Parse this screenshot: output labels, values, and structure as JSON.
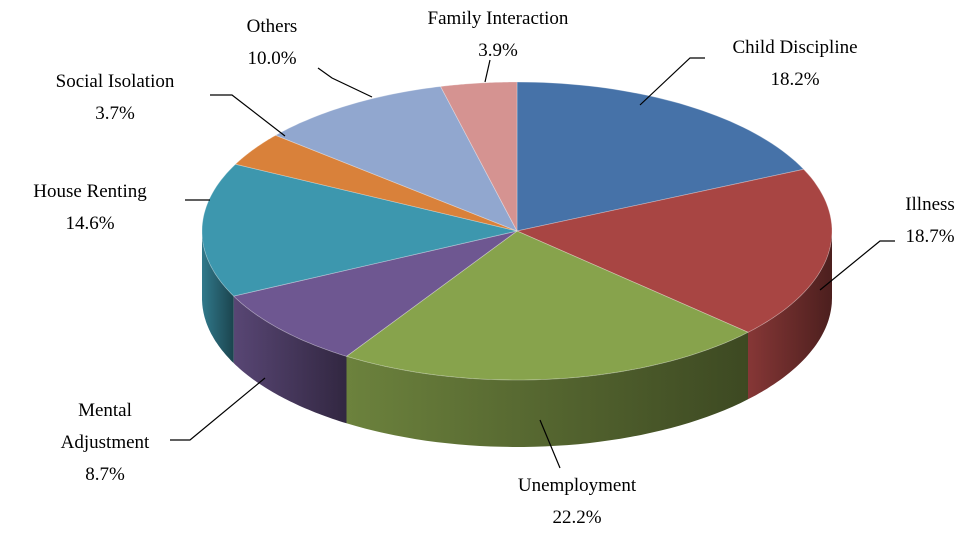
{
  "chart_data": {
    "type": "pie3d",
    "categories": [
      "Child Discipline",
      "Illness",
      "Unemployment",
      "Mental Adjustment",
      "House Renting",
      "Social Isolation",
      "Others",
      "Family Interaction"
    ],
    "values": [
      18.2,
      18.7,
      22.2,
      8.7,
      14.6,
      3.7,
      10.0,
      3.9
    ],
    "value_labels": [
      "18.2%",
      "18.7%",
      "22.2%",
      "8.7%",
      "14.6%",
      "3.7%",
      "10.0%",
      "3.9%"
    ],
    "colors": [
      "#4672a8",
      "#a84543",
      "#87a34c",
      "#6e5791",
      "#3d97ae",
      "#d9813a",
      "#91a7cf",
      "#d59391"
    ]
  }
}
